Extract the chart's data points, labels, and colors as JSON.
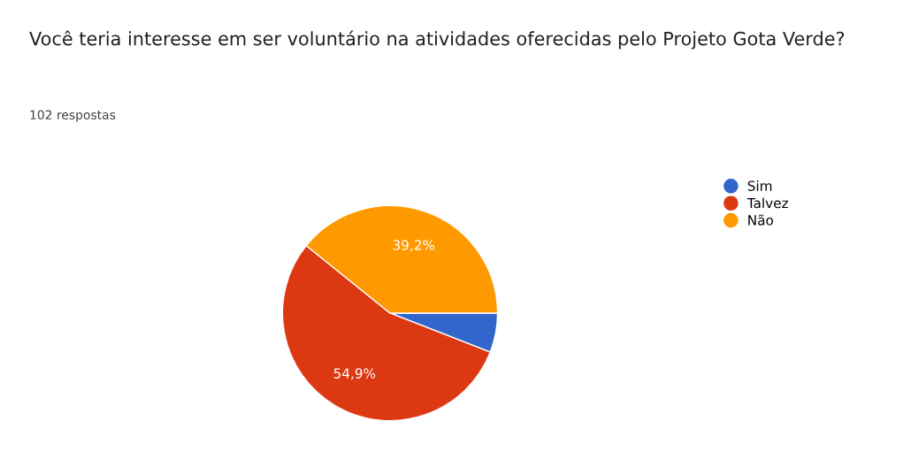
{
  "chart_data": {
    "type": "pie",
    "title": "Você teria interesse em ser voluntário na atividades oferecidas pelo Projeto Gota Verde?",
    "subtitle": "102 respostas",
    "categories": [
      "Sim",
      "Talvez",
      "Não"
    ],
    "values": [
      5.9,
      54.9,
      39.2
    ],
    "colors": [
      "#3366cc",
      "#dc3912",
      "#ff9900"
    ],
    "value_labels": [
      null,
      "54,9%",
      "39,2%"
    ],
    "legend": "top right"
  }
}
